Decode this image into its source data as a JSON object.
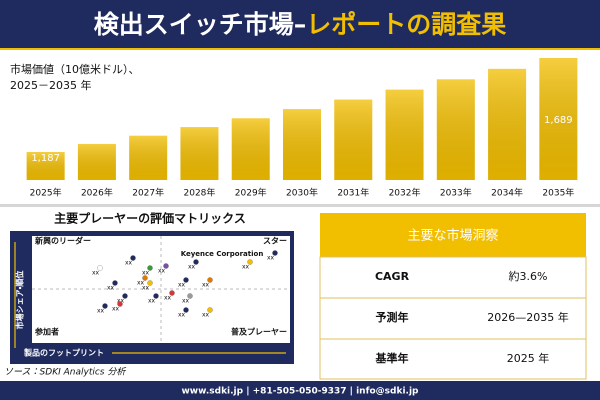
{
  "header": {
    "title_main": "検出スイッチ市場–",
    "title_accent": "レポートの調査果"
  },
  "chart_data": {
    "type": "bar",
    "title": "市場価値（10億米ドル）、",
    "subtitle": "2025－2035 年",
    "categories": [
      "2025年",
      "2026年",
      "2027年",
      "2028年",
      "2029年",
      "2030年",
      "2031年",
      "2032年",
      "2033年",
      "2034年",
      "2035年"
    ],
    "values": [
      1187,
      1230,
      1274,
      1320,
      1367,
      1416,
      1467,
      1520,
      1575,
      1631,
      1689
    ],
    "value_labels": [
      "1,187",
      null,
      null,
      null,
      null,
      null,
      null,
      null,
      null,
      null,
      "1,689"
    ],
    "color": "#f2be00"
  },
  "matrix": {
    "title": "主要プレーヤーの評価マトリックス",
    "top_left": "新興のリーダー",
    "top_right": "スター",
    "bottom_left": "参加者",
    "bottom_right": "普及プレーヤー",
    "highlight": "Keyence Corporation",
    "y_axis_label": "市場シェア・順位",
    "x_axis_label": "製品のフットプリント",
    "point_labels": [
      "xx",
      "xx",
      "xx",
      "xx",
      "xx",
      "xx",
      "xx",
      "xx",
      "xx",
      "xx",
      "xx",
      "xx",
      "xx",
      "xx",
      "xx",
      "xx",
      "xx",
      "xx",
      "xx",
      "xx"
    ]
  },
  "insights": {
    "title": "主要な市場洞察",
    "rows": [
      [
        "CAGR",
        "約3.6%"
      ],
      [
        "予測年",
        "2026—2035 年"
      ],
      [
        "基準年",
        "2025 年"
      ]
    ]
  },
  "source": "ソース：SDKI Analytics 分析",
  "footer": "www.sdki.jp | +81-505-050-9337 | info@sdki.jp"
}
